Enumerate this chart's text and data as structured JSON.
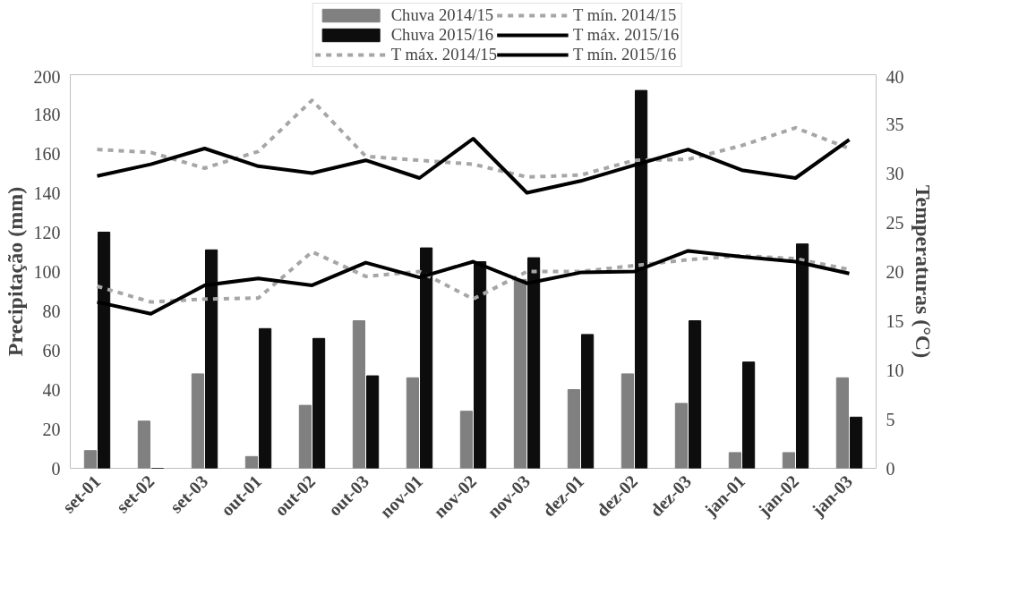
{
  "chart_data": {
    "type": "bar",
    "categories": [
      "set-01",
      "set-02",
      "set-03",
      "out-01",
      "out-02",
      "out-03",
      "nov-01",
      "nov-02",
      "nov-03",
      "dez-01",
      "dez-02",
      "dez-03",
      "jan-01",
      "jan-02",
      "jan-03"
    ],
    "ylabel": "Precipitação (mm)",
    "y2label": "Temperaturas (°C)",
    "ylim": [
      0,
      200
    ],
    "yticks": [
      0,
      20,
      40,
      60,
      80,
      100,
      120,
      140,
      160,
      180,
      200
    ],
    "y2lim": [
      0,
      40
    ],
    "y2ticks": [
      0,
      5,
      10,
      15,
      20,
      25,
      30,
      35,
      40
    ],
    "grid": false,
    "legend": "top",
    "series": [
      {
        "name": "Chuva 2014/15",
        "color": "#808080",
        "values": [
          9,
          24,
          48,
          6,
          32,
          75,
          46,
          29,
          96,
          40,
          48,
          33,
          8,
          8,
          46
        ]
      },
      {
        "name": "Chuva 2015/16",
        "color": "#0d0d0d",
        "values": [
          120,
          0,
          111,
          71,
          66,
          47,
          112,
          105,
          107,
          68,
          192,
          75,
          54,
          114,
          26
        ]
      },
      {
        "name": "T máx. 2014/15",
        "type": "line",
        "axis": "y2",
        "line_style": "dashed",
        "color": "#a6a6a6",
        "values": [
          32.4,
          32.1,
          30.5,
          32.2,
          37.4,
          31.7,
          31.3,
          30.9,
          29.6,
          29.8,
          31.3,
          31.4,
          32.8,
          34.6,
          32.5
        ]
      },
      {
        "name": "T mín. 2014/15",
        "type": "line",
        "axis": "y2",
        "line_style": "dashed",
        "color": "#a6a6a6",
        "values": [
          18.5,
          16.9,
          17.2,
          17.3,
          22.0,
          19.5,
          20.0,
          17.2,
          20.0,
          20.0,
          20.6,
          21.2,
          21.6,
          21.3,
          20.2
        ]
      },
      {
        "name": "T máx. 2015/16",
        "type": "line",
        "axis": "y2",
        "line_style": "solid",
        "color": "#000000",
        "values": [
          29.7,
          30.9,
          32.5,
          30.7,
          30.0,
          31.3,
          29.5,
          33.5,
          28.0,
          29.2,
          30.8,
          32.4,
          30.3,
          29.5,
          33.4
        ]
      },
      {
        "name": "T mín. 2015/16",
        "type": "line",
        "axis": "y2",
        "line_style": "solid",
        "color": "#000000",
        "values": [
          16.9,
          15.7,
          18.6,
          19.3,
          18.6,
          20.9,
          19.4,
          21.0,
          18.8,
          19.9,
          20.0,
          22.1,
          21.5,
          21.0,
          19.8
        ]
      }
    ]
  }
}
